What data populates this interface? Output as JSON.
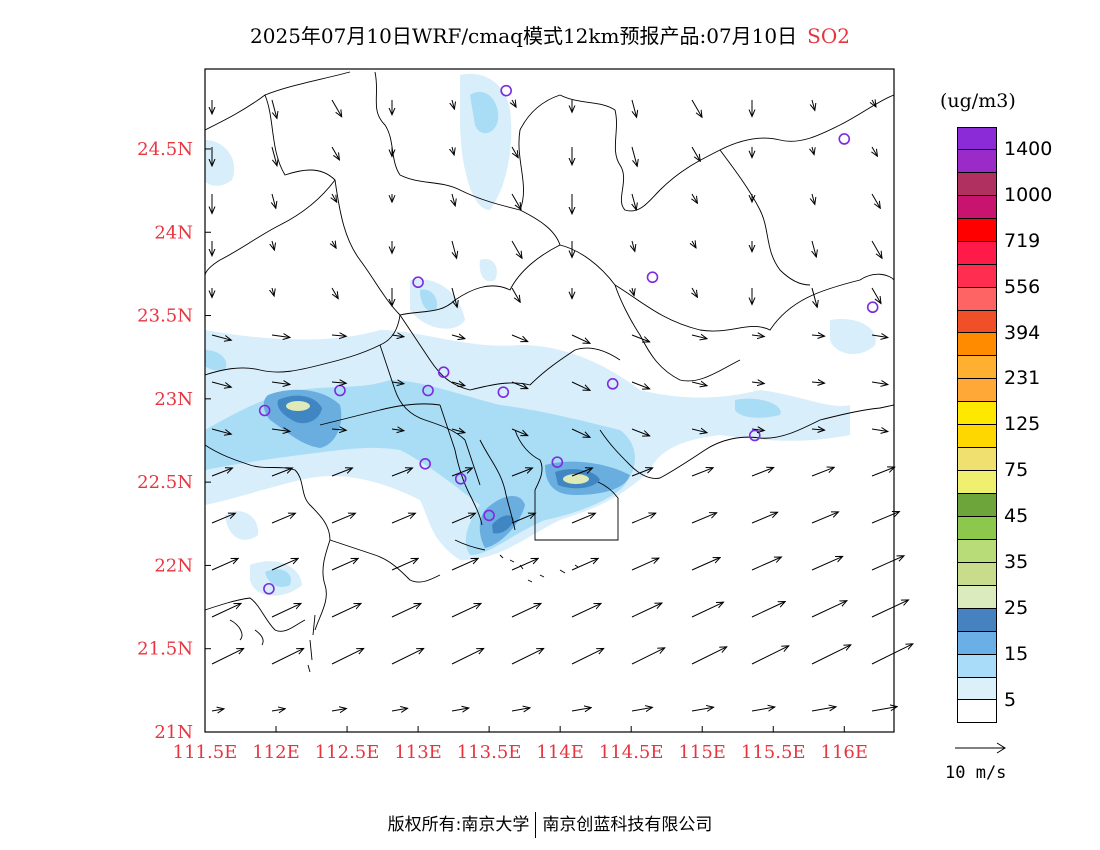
{
  "title": {
    "prefix": "2025年07月10日WRF/cmaq模式12km预报产品:07月10日",
    "pollutant": "SO2"
  },
  "colors": {
    "axis_label": "#e8343f",
    "station_marker": "#7b2be0",
    "plume_light": "#d8eefa",
    "plume_mid": "#a9dcf5",
    "plume_dark": "#6aaddf",
    "plume_core": "#3f86c2",
    "plume_peak": "#dfeab8"
  },
  "map": {
    "lon_labels": [
      "111.5E",
      "112E",
      "112.5E",
      "113E",
      "113.5E",
      "114E",
      "114.5E",
      "115E",
      "115.5E",
      "116E"
    ],
    "lat_labels": [
      "24.5N",
      "24N",
      "23.5N",
      "23N",
      "22.5N",
      "22N",
      "21.5N",
      "21N"
    ],
    "lon_range": [
      111.5,
      116.35
    ],
    "lat_range": [
      21.0,
      24.98
    ]
  },
  "legend": {
    "unit": "(ug/m3)",
    "colors": [
      "#8b2bd8",
      "#9b2bc8",
      "#b03060",
      "#c8146e",
      "#ff0000",
      "#ff1a4a",
      "#ff2e50",
      "#ff6464",
      "#f05028",
      "#ff8c00",
      "#ffb030",
      "#ffa838",
      "#ffe800",
      "#ffd700",
      "#f0e070",
      "#f0f070",
      "#6da53a",
      "#8cc84b",
      "#b8dc78",
      "#c8dc8c",
      "#dcebbe",
      "#4682c0",
      "#6ab0e6",
      "#a8dcf8",
      "#dcf0fa",
      "#ffffff"
    ],
    "labels": [
      "1400",
      "1000",
      "719",
      "556",
      "394",
      "231",
      "125",
      "75",
      "45",
      "35",
      "25",
      "15",
      "5"
    ],
    "reference_vector": "10 m/s"
  },
  "stations": [
    {
      "lon": 113.62,
      "lat": 24.85
    },
    {
      "lon": 116.0,
      "lat": 24.56
    },
    {
      "lon": 113.0,
      "lat": 23.7
    },
    {
      "lon": 114.65,
      "lat": 23.73
    },
    {
      "lon": 116.2,
      "lat": 23.55
    },
    {
      "lon": 113.18,
      "lat": 23.16
    },
    {
      "lon": 112.45,
      "lat": 23.05
    },
    {
      "lon": 113.07,
      "lat": 23.05
    },
    {
      "lon": 113.6,
      "lat": 23.04
    },
    {
      "lon": 114.37,
      "lat": 23.09
    },
    {
      "lon": 111.92,
      "lat": 22.93
    },
    {
      "lon": 115.37,
      "lat": 22.78
    },
    {
      "lon": 113.05,
      "lat": 22.61
    },
    {
      "lon": 113.3,
      "lat": 22.52
    },
    {
      "lon": 113.98,
      "lat": 22.62
    },
    {
      "lon": 113.5,
      "lat": 22.3
    },
    {
      "lon": 111.95,
      "lat": 21.86
    }
  ],
  "footer": {
    "left": "版权所有:南京大学",
    "right": "南京创蓝科技有限公司"
  }
}
